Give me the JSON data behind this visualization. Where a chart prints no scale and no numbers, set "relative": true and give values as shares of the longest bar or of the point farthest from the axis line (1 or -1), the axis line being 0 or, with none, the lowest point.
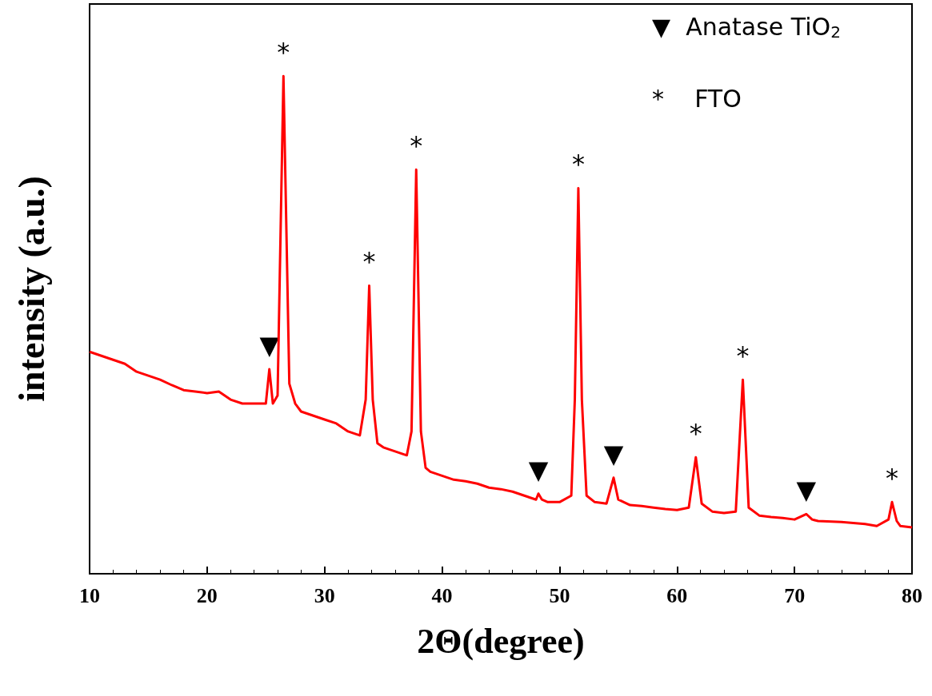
{
  "chart_data": {
    "type": "line",
    "relative": true,
    "xlabel": "2Θ(degree)",
    "ylabel": "intensity (a.u.)",
    "xlim": [
      10,
      80
    ],
    "xticks": [
      10,
      20,
      30,
      40,
      50,
      60,
      70,
      80
    ],
    "grid": false,
    "marker": "none",
    "line_style": "solid",
    "series": [
      {
        "color": "#ff0000",
        "x": [
          10,
          11,
          12,
          13,
          14,
          15,
          16,
          17,
          18,
          19,
          20,
          21,
          22,
          23,
          24,
          25,
          25.3,
          25.6,
          26,
          26.5,
          27,
          27.5,
          28,
          29,
          30,
          31,
          32,
          33,
          33.5,
          33.8,
          34.1,
          34.5,
          35,
          36,
          37,
          37.4,
          37.8,
          38.2,
          38.6,
          39,
          40,
          41,
          42,
          43,
          44,
          45,
          46,
          47,
          48,
          48.2,
          48.5,
          49,
          50,
          51,
          51.3,
          51.6,
          51.9,
          52.3,
          53,
          54,
          54.6,
          55,
          56,
          57,
          58,
          59,
          60,
          61,
          61.6,
          62.1,
          63,
          64,
          65,
          65.6,
          66.1,
          67,
          68,
          69,
          70,
          71,
          71.5,
          72,
          74,
          76,
          77,
          78,
          78.3,
          78.7,
          79,
          80
        ],
        "values": [
          0.446,
          0.438,
          0.43,
          0.422,
          0.406,
          0.398,
          0.39,
          0.379,
          0.369,
          0.366,
          0.363,
          0.366,
          0.35,
          0.342,
          0.342,
          0.342,
          0.411,
          0.342,
          0.358,
          1,
          0.382,
          0.342,
          0.326,
          0.318,
          0.31,
          0.302,
          0.286,
          0.278,
          0.35,
          0.579,
          0.35,
          0.262,
          0.254,
          0.246,
          0.238,
          0.286,
          0.812,
          0.286,
          0.213,
          0.205,
          0.197,
          0.189,
          0.186,
          0.181,
          0.173,
          0.17,
          0.165,
          0.157,
          0.149,
          0.161,
          0.149,
          0.144,
          0.144,
          0.157,
          0.35,
          0.775,
          0.35,
          0.157,
          0.144,
          0.141,
          0.193,
          0.149,
          0.138,
          0.136,
          0.133,
          0.13,
          0.128,
          0.133,
          0.234,
          0.141,
          0.125,
          0.122,
          0.125,
          0.39,
          0.133,
          0.117,
          0.114,
          0.112,
          0.109,
          0.12,
          0.109,
          0.106,
          0.104,
          0.1,
          0.096,
          0.109,
          0.144,
          0.106,
          0.096,
          0.093
        ]
      }
    ],
    "annotations": [
      {
        "text": "▼",
        "x": 25.3,
        "y": 0.411
      },
      {
        "text": "*",
        "x": 26.5,
        "y": 1
      },
      {
        "text": "*",
        "x": 33.8,
        "y": 0.579
      },
      {
        "text": "*",
        "x": 37.8,
        "y": 0.812
      },
      {
        "text": "▼",
        "x": 48.2,
        "y": 0.161
      },
      {
        "text": "*",
        "x": 51.6,
        "y": 0.775
      },
      {
        "text": "▼",
        "x": 54.6,
        "y": 0.193
      },
      {
        "text": "*",
        "x": 61.6,
        "y": 0.234
      },
      {
        "text": "*",
        "x": 65.6,
        "y": 0.39
      },
      {
        "text": "▼",
        "x": 71,
        "y": 0.12
      },
      {
        "text": "*",
        "x": 78.3,
        "y": 0.144
      },
      "▼  Anatase TiO$_{2}$",
      "*    FTO"
    ]
  }
}
